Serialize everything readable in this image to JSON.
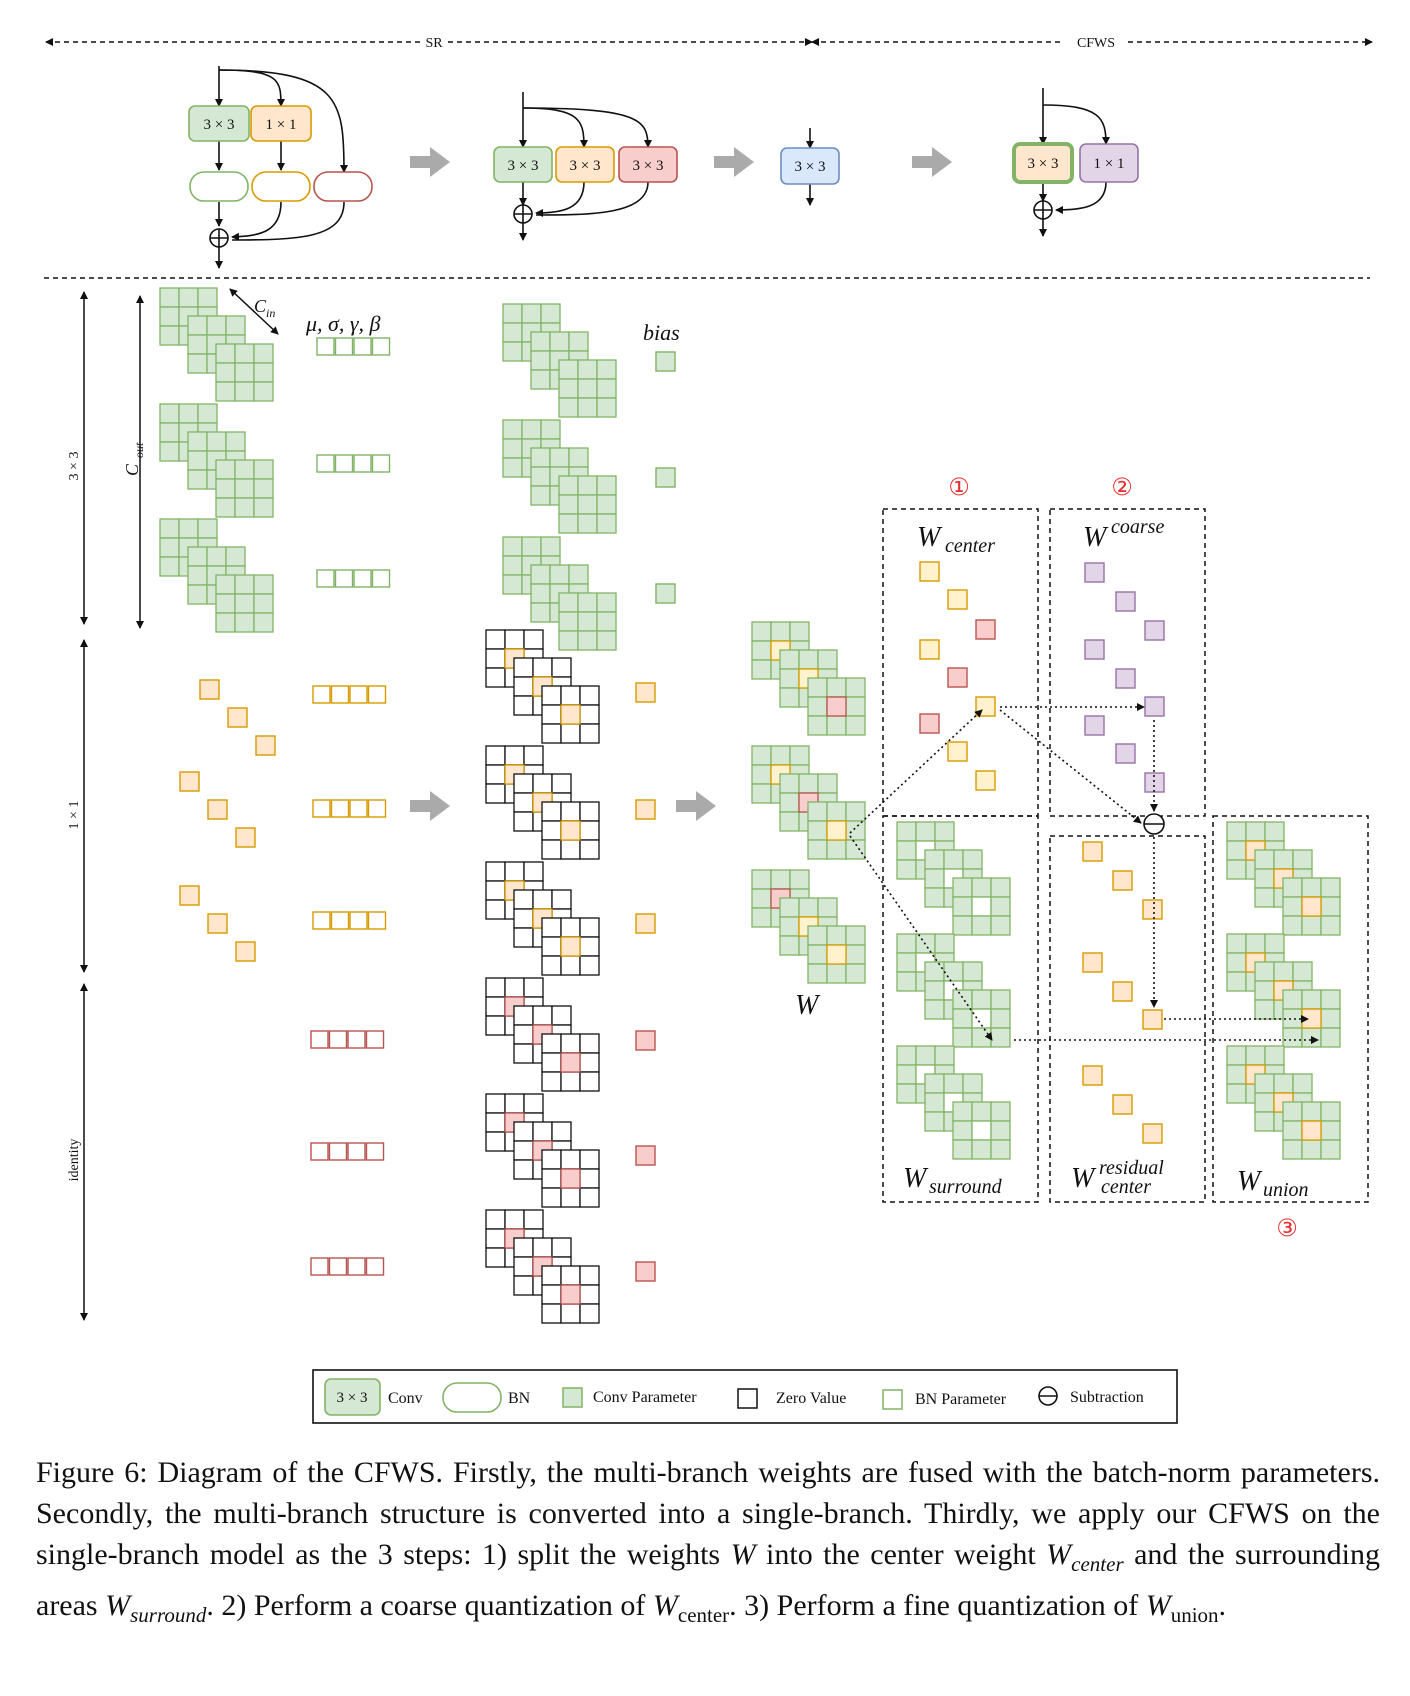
{
  "top_section": {
    "sr_label": "SR",
    "cfws_label": "CFWS",
    "blocks": {
      "k3": "3 × 3",
      "k1": "1 × 1"
    }
  },
  "row_labels": {
    "r3x3": "3 × 3",
    "r1x1": "1 × 1",
    "identity": "identity"
  },
  "labels": {
    "cin": "C",
    "cin_sub": "in",
    "cout": "C",
    "cout_sub": "out",
    "bn_params": "μ, σ, γ, β",
    "bias": "bias",
    "w": "W",
    "w_center": "W",
    "w_center_sub": "center",
    "w_coarse": "W",
    "w_coarse_sup": "coarse",
    "w_surround": "W",
    "w_surround_sub": "surround",
    "w_residual": "W",
    "w_residual_sup": "residual",
    "w_residual_sub": "center",
    "w_union": "W",
    "w_union_sub": "union",
    "step1": "①",
    "step2": "②",
    "step3": "③"
  },
  "legend": {
    "conv_box": "3 × 3",
    "conv": "Conv",
    "bn": "BN",
    "conv_param": "Conv Parameter",
    "zero_value": "Zero Value",
    "bn_param": "BN Parameter",
    "subtraction": "Subtraction"
  },
  "colors": {
    "green_fill": "#d5e8d4",
    "green_stroke": "#82b366",
    "orange_fill": "#ffe6cc",
    "orange_stroke": "#d79b00",
    "red_fill": "#f8cecc",
    "red_stroke": "#b85450",
    "blue_fill": "#dae8fc",
    "blue_stroke": "#6c8ebf",
    "purple_fill": "#e1d5e7",
    "purple_stroke": "#9673a6",
    "yellow_fill": "#fff2cc"
  },
  "caption": {
    "p1": "Figure 6: Diagram of the CFWS. Firstly, the multi-branch weights are fused with the batch-norm parameters. Secondly, the multi-branch structure is converted into a single-branch. Thirdly, we apply our CFWS on the single-branch model as the 3 steps: 1) split the weights ",
    "w": "W",
    "p2": " into the center weight ",
    "w_center": "W",
    "w_center_sub": "center",
    "p3": " and the surrounding areas ",
    "w_surround": "W",
    "w_surround_sub": "surround",
    "p4": ". 2) Perform a coarse quantization of ",
    "w_center2": "W",
    "w_center2_sub": "center",
    "p5": ". 3) Perform a fine quantization of ",
    "w_union": "W",
    "w_union_sub": "union",
    "p6": "."
  }
}
